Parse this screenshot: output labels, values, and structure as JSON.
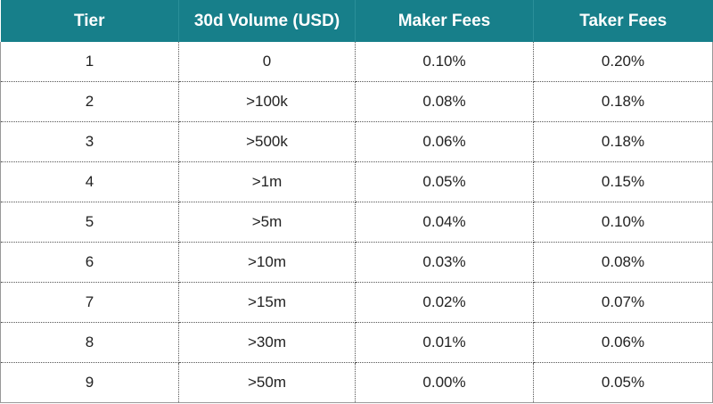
{
  "table": {
    "header": [
      "Tier",
      "30d Volume (USD)",
      "Maker Fees",
      "Taker Fees"
    ],
    "rows": [
      [
        "1",
        "0",
        "0.10%",
        "0.20%"
      ],
      [
        "2",
        ">100k",
        "0.08%",
        "0.18%"
      ],
      [
        "3",
        ">500k",
        "0.06%",
        "0.18%"
      ],
      [
        "4",
        ">1m",
        "0.05%",
        "0.15%"
      ],
      [
        "5",
        ">5m",
        "0.04%",
        "0.10%"
      ],
      [
        "6",
        ">10m",
        "0.03%",
        "0.08%"
      ],
      [
        "7",
        ">15m",
        "0.02%",
        "0.07%"
      ],
      [
        "8",
        ">30m",
        "0.01%",
        "0.06%"
      ],
      [
        "9",
        ">50m",
        "0.00%",
        "0.05%"
      ]
    ]
  }
}
